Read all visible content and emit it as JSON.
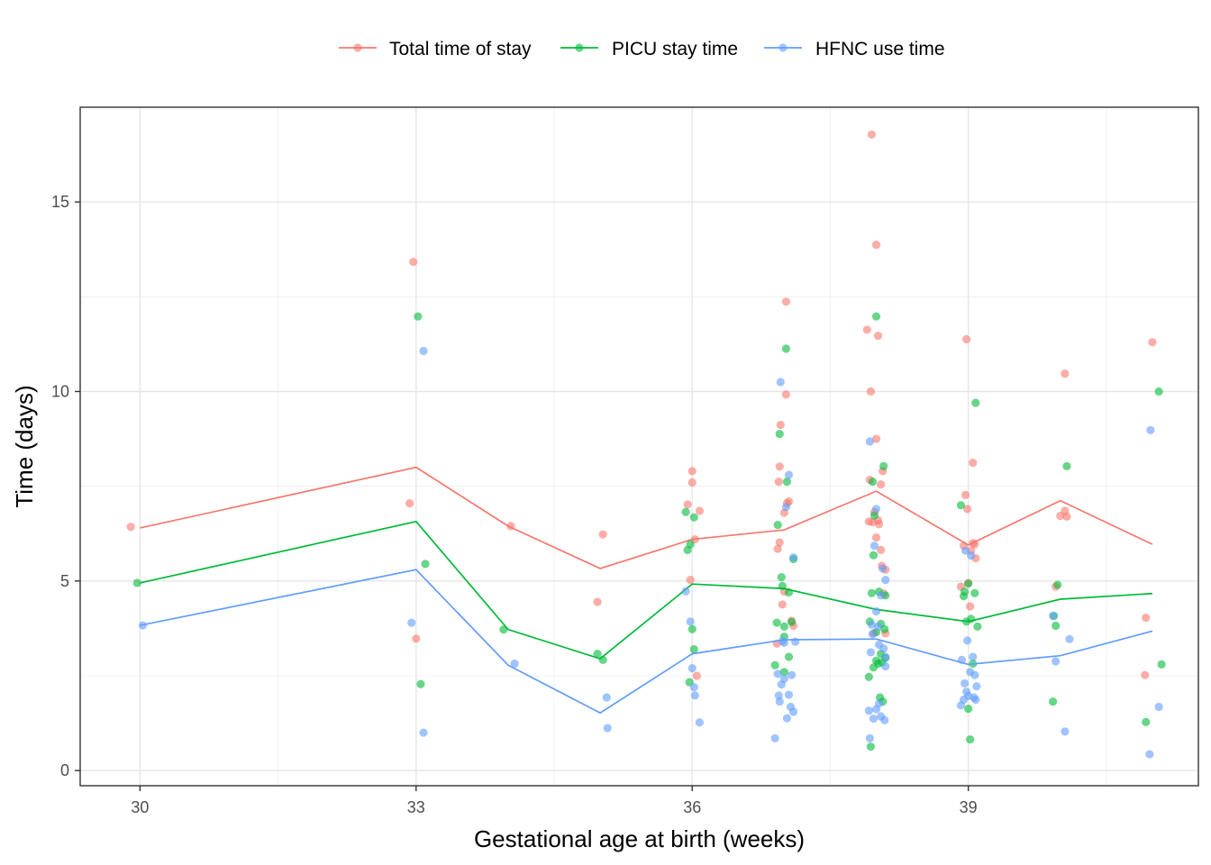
{
  "chart_data": {
    "type": "scatter",
    "xlabel": "Gestational age at birth (weeks)",
    "ylabel": "Time (days)",
    "xlim": [
      29.35,
      41.5
    ],
    "ylim": [
      -0.4,
      17.5
    ],
    "x_ticks": [
      30,
      33,
      36,
      39
    ],
    "y_ticks": [
      0,
      5,
      10,
      15
    ],
    "grid": true,
    "legend_position": "top",
    "series": [
      {
        "name": "Total time of stay",
        "color": "#F8766D",
        "line": {
          "x": [
            30,
            33,
            34,
            35,
            36,
            37,
            38,
            39,
            40,
            41
          ],
          "y": [
            6.4,
            8.0,
            6.45,
            5.33,
            6.1,
            6.35,
            7.37,
            5.95,
            7.12,
            5.97
          ]
        },
        "points": [
          [
            29.9,
            6.43
          ],
          [
            32.93,
            7.05
          ],
          [
            32.97,
            13.42
          ],
          [
            33.0,
            3.48
          ],
          [
            34.03,
            6.45
          ],
          [
            34.97,
            4.45
          ],
          [
            35.03,
            6.23
          ],
          [
            35.95,
            7.02
          ],
          [
            35.98,
            5.03
          ],
          [
            36.0,
            7.6
          ],
          [
            36.0,
            7.9
          ],
          [
            36.03,
            6.1
          ],
          [
            36.05,
            2.5
          ],
          [
            36.08,
            6.85
          ],
          [
            36.92,
            3.35
          ],
          [
            36.93,
            5.85
          ],
          [
            36.94,
            7.62
          ],
          [
            36.95,
            8.02
          ],
          [
            36.95,
            6.02
          ],
          [
            36.96,
            9.12
          ],
          [
            36.98,
            4.38
          ],
          [
            37.0,
            4.72
          ],
          [
            37.0,
            6.8
          ],
          [
            37.02,
            12.37
          ],
          [
            37.02,
            9.92
          ],
          [
            37.03,
            7.05
          ],
          [
            37.05,
            7.1
          ],
          [
            37.08,
            3.95
          ],
          [
            37.1,
            3.82
          ],
          [
            37.9,
            11.63
          ],
          [
            37.92,
            6.57
          ],
          [
            37.93,
            7.67
          ],
          [
            37.94,
            10.0
          ],
          [
            37.95,
            16.78
          ],
          [
            37.96,
            6.55
          ],
          [
            37.97,
            3.62
          ],
          [
            37.98,
            6.82
          ],
          [
            38.0,
            13.87
          ],
          [
            38.0,
            8.75
          ],
          [
            38.0,
            6.15
          ],
          [
            38.02,
            11.47
          ],
          [
            38.02,
            6.6
          ],
          [
            38.03,
            6.5
          ],
          [
            38.05,
            7.55
          ],
          [
            38.05,
            5.82
          ],
          [
            38.06,
            5.4
          ],
          [
            38.07,
            7.9
          ],
          [
            38.08,
            4.67
          ],
          [
            38.1,
            5.3
          ],
          [
            38.1,
            3.62
          ],
          [
            38.92,
            4.85
          ],
          [
            38.95,
            5.93
          ],
          [
            38.97,
            7.27
          ],
          [
            38.98,
            11.38
          ],
          [
            38.99,
            6.9
          ],
          [
            39.0,
            4.95
          ],
          [
            39.02,
            4.33
          ],
          [
            39.03,
            5.8
          ],
          [
            39.05,
            8.12
          ],
          [
            39.05,
            6.0
          ],
          [
            39.07,
            5.97
          ],
          [
            39.08,
            5.6
          ],
          [
            39.95,
            4.85
          ],
          [
            40.0,
            6.72
          ],
          [
            40.05,
            6.85
          ],
          [
            40.05,
            10.47
          ],
          [
            40.07,
            6.7
          ],
          [
            40.92,
            2.52
          ],
          [
            40.93,
            4.03
          ],
          [
            41.0,
            11.3
          ]
        ]
      },
      {
        "name": "PICU stay time",
        "color": "#00BA38",
        "line": {
          "x": [
            30,
            33,
            34,
            35,
            36,
            37,
            38,
            39,
            40,
            41
          ],
          "y": [
            4.95,
            6.57,
            3.72,
            2.95,
            4.92,
            4.8,
            4.25,
            3.93,
            4.52,
            4.67
          ]
        },
        "points": [
          [
            29.97,
            4.95
          ],
          [
            33.02,
            11.98
          ],
          [
            33.05,
            2.28
          ],
          [
            33.1,
            5.45
          ],
          [
            33.95,
            3.72
          ],
          [
            34.97,
            3.08
          ],
          [
            35.03,
            2.92
          ],
          [
            35.93,
            6.82
          ],
          [
            35.95,
            5.82
          ],
          [
            35.97,
            2.33
          ],
          [
            35.98,
            5.97
          ],
          [
            36.0,
            3.73
          ],
          [
            36.02,
            6.68
          ],
          [
            36.02,
            3.2
          ],
          [
            36.9,
            2.78
          ],
          [
            36.92,
            3.9
          ],
          [
            36.93,
            6.48
          ],
          [
            36.95,
            8.88
          ],
          [
            36.97,
            5.1
          ],
          [
            36.98,
            4.87
          ],
          [
            37.0,
            3.8
          ],
          [
            37.0,
            3.53
          ],
          [
            37.0,
            2.6
          ],
          [
            37.02,
            11.13
          ],
          [
            37.03,
            7.62
          ],
          [
            37.05,
            3.0
          ],
          [
            37.05,
            4.7
          ],
          [
            37.08,
            3.92
          ],
          [
            37.1,
            5.58
          ],
          [
            37.92,
            2.47
          ],
          [
            37.93,
            3.93
          ],
          [
            37.94,
            0.63
          ],
          [
            37.95,
            4.68
          ],
          [
            37.96,
            7.62
          ],
          [
            37.97,
            5.68
          ],
          [
            37.97,
            2.72
          ],
          [
            37.98,
            6.73
          ],
          [
            38.0,
            11.98
          ],
          [
            38.0,
            3.65
          ],
          [
            38.0,
            2.9
          ],
          [
            38.02,
            2.82
          ],
          [
            38.03,
            4.72
          ],
          [
            38.04,
            1.93
          ],
          [
            38.05,
            3.08
          ],
          [
            38.05,
            3.87
          ],
          [
            38.06,
            2.85
          ],
          [
            38.07,
            1.82
          ],
          [
            38.08,
            8.03
          ],
          [
            38.09,
            3.73
          ],
          [
            38.1,
            4.62
          ],
          [
            38.1,
            2.97
          ],
          [
            38.92,
            7.0
          ],
          [
            38.95,
            4.6
          ],
          [
            38.96,
            4.72
          ],
          [
            38.98,
            3.93
          ],
          [
            39.0,
            1.63
          ],
          [
            39.0,
            4.93
          ],
          [
            39.02,
            0.82
          ],
          [
            39.03,
            4.0
          ],
          [
            39.05,
            2.82
          ],
          [
            39.07,
            4.68
          ],
          [
            39.08,
            9.7
          ],
          [
            39.1,
            3.8
          ],
          [
            39.92,
            1.82
          ],
          [
            39.93,
            4.08
          ],
          [
            39.95,
            3.82
          ],
          [
            39.97,
            4.9
          ],
          [
            40.07,
            8.03
          ],
          [
            40.93,
            1.28
          ],
          [
            41.07,
            10.0
          ],
          [
            41.1,
            2.8
          ]
        ]
      },
      {
        "name": "HFNC use time",
        "color": "#619CFF",
        "line": {
          "x": [
            30,
            33,
            34,
            35,
            36,
            37,
            38,
            39,
            40,
            41
          ],
          "y": [
            3.83,
            5.3,
            2.78,
            1.52,
            3.08,
            3.45,
            3.47,
            2.8,
            3.03,
            3.68
          ]
        },
        "points": [
          [
            30.03,
            3.83
          ],
          [
            32.95,
            3.9
          ],
          [
            33.08,
            11.07
          ],
          [
            33.08,
            1.0
          ],
          [
            34.07,
            2.82
          ],
          [
            35.07,
            1.93
          ],
          [
            35.08,
            1.12
          ],
          [
            35.93,
            4.73
          ],
          [
            35.98,
            3.93
          ],
          [
            36.0,
            2.7
          ],
          [
            36.02,
            2.2
          ],
          [
            36.03,
            1.98
          ],
          [
            36.08,
            1.27
          ],
          [
            36.9,
            0.85
          ],
          [
            36.93,
            2.55
          ],
          [
            36.94,
            1.98
          ],
          [
            36.95,
            1.82
          ],
          [
            36.96,
            10.25
          ],
          [
            36.97,
            2.27
          ],
          [
            36.98,
            3.42
          ],
          [
            37.0,
            3.37
          ],
          [
            37.0,
            2.42
          ],
          [
            37.02,
            6.95
          ],
          [
            37.03,
            1.38
          ],
          [
            37.05,
            7.8
          ],
          [
            37.05,
            2.0
          ],
          [
            37.07,
            1.68
          ],
          [
            37.08,
            2.52
          ],
          [
            37.1,
            1.55
          ],
          [
            37.1,
            5.62
          ],
          [
            37.12,
            3.4
          ],
          [
            37.92,
            1.58
          ],
          [
            37.93,
            0.85
          ],
          [
            37.93,
            8.68
          ],
          [
            37.94,
            3.12
          ],
          [
            37.95,
            3.85
          ],
          [
            37.96,
            3.6
          ],
          [
            37.97,
            1.37
          ],
          [
            37.98,
            5.93
          ],
          [
            38.0,
            6.9
          ],
          [
            38.0,
            4.2
          ],
          [
            38.0,
            1.62
          ],
          [
            38.02,
            3.8
          ],
          [
            38.03,
            3.32
          ],
          [
            38.03,
            1.77
          ],
          [
            38.05,
            4.62
          ],
          [
            38.05,
            1.43
          ],
          [
            38.07,
            5.33
          ],
          [
            38.08,
            3.22
          ],
          [
            38.09,
            1.33
          ],
          [
            38.1,
            5.03
          ],
          [
            38.1,
            3.0
          ],
          [
            38.1,
            2.75
          ],
          [
            38.92,
            1.72
          ],
          [
            38.93,
            2.92
          ],
          [
            38.95,
            1.87
          ],
          [
            38.96,
            2.3
          ],
          [
            38.97,
            5.8
          ],
          [
            38.98,
            2.08
          ],
          [
            38.99,
            3.43
          ],
          [
            39.0,
            1.97
          ],
          [
            39.02,
            2.6
          ],
          [
            39.03,
            5.67
          ],
          [
            39.05,
            3.0
          ],
          [
            39.06,
            1.93
          ],
          [
            39.07,
            2.52
          ],
          [
            39.08,
            1.87
          ],
          [
            39.09,
            2.22
          ],
          [
            39.92,
            4.08
          ],
          [
            39.95,
            2.88
          ],
          [
            40.05,
            1.03
          ],
          [
            40.1,
            3.47
          ],
          [
            40.97,
            0.43
          ],
          [
            40.98,
            8.98
          ],
          [
            41.07,
            1.68
          ]
        ]
      }
    ]
  }
}
